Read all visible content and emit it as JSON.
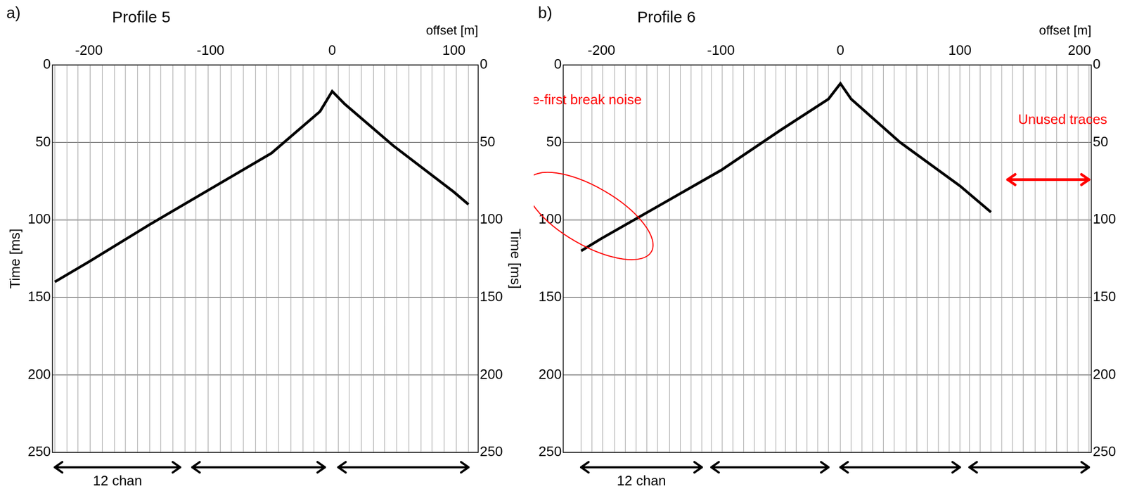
{
  "chart_data": [
    {
      "type": "line",
      "panel_label": "a)",
      "title": "Profile 5",
      "x_label": "offset [m]",
      "y_label": "Time [ms]",
      "y2_label": "Time [ms]",
      "xlim": [
        -230,
        120
      ],
      "xticks": [
        -200,
        -100,
        0,
        100
      ],
      "ylim": [
        0,
        250
      ],
      "yticks": [
        0,
        50,
        100,
        150,
        200,
        250
      ],
      "y2lim": [
        0,
        250
      ],
      "y2ticks": [
        0,
        50,
        100,
        150,
        200,
        250
      ],
      "grid": true,
      "x": [
        -228,
        -200,
        -150,
        -100,
        -50,
        -10,
        0,
        10,
        50,
        100,
        112
      ],
      "series": [
        {
          "color": "#000000",
          "values": [
            140,
            127,
            103,
            80,
            57,
            30,
            17,
            25,
            52,
            82,
            90
          ]
        }
      ],
      "traces": [
        -228,
        -218,
        -209,
        -199,
        -189,
        -179,
        -170,
        -160,
        -150,
        -141,
        -131,
        -121,
        -112,
        -102,
        -92,
        -83,
        -73,
        -63,
        -54,
        -44,
        -34,
        -24,
        -15,
        -5,
        5,
        14,
        24,
        34,
        43,
        53,
        63,
        73,
        82,
        92,
        102,
        112
      ],
      "channel_groups": [
        [
          -228,
          -125
        ],
        [
          -115,
          -6
        ],
        [
          5,
          112
        ]
      ],
      "channel_group_label": "12 chan",
      "annotations": []
    },
    {
      "type": "line",
      "panel_label": "b)",
      "title": "Profile 6",
      "x_label": "offset [m]",
      "y_label": null,
      "y2_label": null,
      "xlim": [
        -232,
        210
      ],
      "xticks": [
        -200,
        -100,
        0,
        100,
        200
      ],
      "ylim": [
        0,
        250
      ],
      "yticks": [
        0,
        50,
        100,
        150,
        200,
        250
      ],
      "y2lim": [
        0,
        250
      ],
      "y2ticks": [
        0,
        50,
        100,
        150,
        200,
        250
      ],
      "grid": true,
      "x": [
        -217,
        -200,
        -150,
        -100,
        -50,
        -10,
        0,
        9,
        50,
        100,
        126
      ],
      "series": [
        {
          "color": "#000000",
          "values": [
            120,
            112,
            90,
            68,
            42,
            22,
            12,
            22,
            50,
            78,
            95
          ]
        }
      ],
      "traces": [
        -217,
        -208,
        -199,
        -189,
        -180,
        -171,
        -162,
        -153,
        -143,
        -134,
        -125,
        -116,
        -108,
        -99,
        -90,
        -81,
        -72,
        -63,
        -54,
        -46,
        -37,
        -28,
        -19,
        -10,
        0,
        9,
        18,
        27,
        36,
        45,
        55,
        64,
        73,
        82,
        91,
        100,
        108,
        117,
        126,
        135,
        144,
        153,
        163,
        172,
        181,
        190,
        199,
        208
      ],
      "channel_groups": [
        [
          -217,
          -116
        ],
        [
          -108,
          -10
        ],
        [
          0,
          100
        ],
        [
          108,
          208
        ]
      ],
      "channel_group_label": "12 chan",
      "annotations": [
        {
          "text": "Pre-first break noise",
          "color": "#ff0000",
          "kind": "ellipse"
        },
        {
          "text": "Unused traces",
          "color": "#ff0000",
          "kind": "range",
          "range": [
            140,
            208
          ]
        }
      ]
    }
  ]
}
